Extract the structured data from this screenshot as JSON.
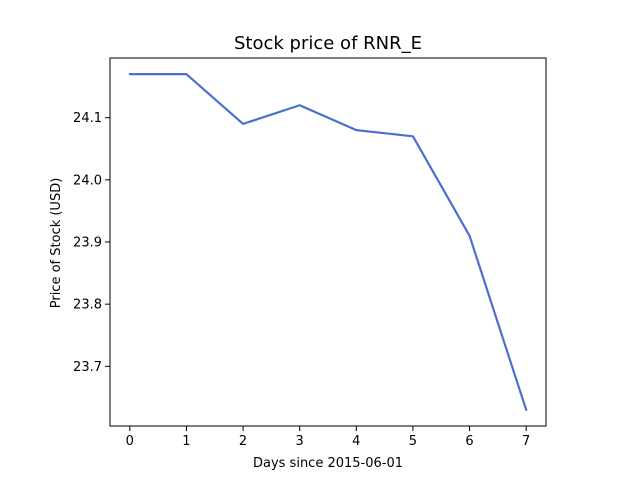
{
  "chart_data": {
    "type": "line",
    "title": "Stock price of RNR_E",
    "xlabel": "Days since 2015-06-01",
    "ylabel": "Price of Stock (USD)",
    "x": [
      0,
      1,
      2,
      3,
      4,
      5,
      6,
      7
    ],
    "x_ticks": [
      "0",
      "1",
      "2",
      "3",
      "4",
      "5",
      "6",
      "7"
    ],
    "y_ticks": [
      "23.7",
      "23.8",
      "23.9",
      "24.0",
      "24.1"
    ],
    "y_tick_values": [
      23.7,
      23.8,
      23.9,
      24.0,
      24.1
    ],
    "series": [
      {
        "values": [
          24.17,
          24.17,
          24.09,
          24.12,
          24.08,
          24.07,
          23.91,
          23.63
        ],
        "color": "#4c6fcf"
      }
    ],
    "xlim": [
      -0.35,
      7.35
    ],
    "ylim": [
      23.604,
      24.196
    ],
    "grid": false,
    "legend": "none"
  }
}
